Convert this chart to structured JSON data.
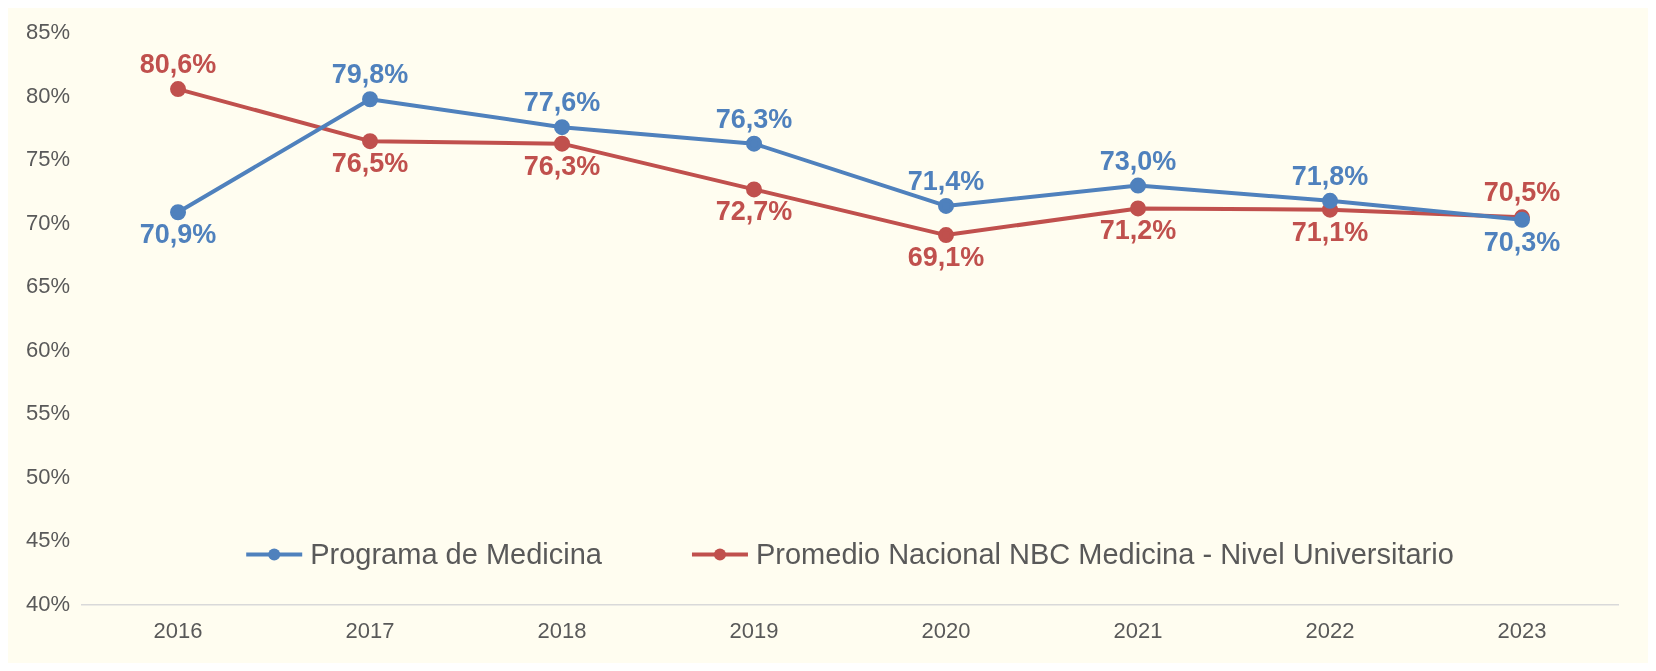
{
  "chart_data": {
    "type": "line",
    "categories": [
      "2016",
      "2017",
      "2018",
      "2019",
      "2020",
      "2021",
      "2022",
      "2023"
    ],
    "series": [
      {
        "name": "Programa de Medicina",
        "color": "#4f81bd",
        "values": [
          70.9,
          79.8,
          77.6,
          76.3,
          71.4,
          73.0,
          71.8,
          70.3
        ],
        "value_labels": [
          "70,9%",
          "79,8%",
          "77,6%",
          "76,3%",
          "71,4%",
          "73,0%",
          "71,8%",
          "70,3%"
        ]
      },
      {
        "name": "Promedio Nacional NBC Medicina - Nivel Universitario",
        "color": "#c0504d",
        "values": [
          80.6,
          76.5,
          76.3,
          72.7,
          69.1,
          71.2,
          71.1,
          70.5
        ],
        "value_labels": [
          "80,6%",
          "76,5%",
          "76,3%",
          "72,7%",
          "69,1%",
          "71,2%",
          "71,1%",
          "70,5%"
        ]
      }
    ],
    "ylim": [
      40,
      85
    ],
    "yticks": [
      {
        "value": 40,
        "label": "40%"
      },
      {
        "value": 45,
        "label": "45%"
      },
      {
        "value": 50,
        "label": "50%"
      },
      {
        "value": 55,
        "label": "55%"
      },
      {
        "value": 60,
        "label": "60%"
      },
      {
        "value": 65,
        "label": "65%"
      },
      {
        "value": 70,
        "label": "70%"
      },
      {
        "value": 75,
        "label": "75%"
      },
      {
        "value": 80,
        "label": "80%"
      },
      {
        "value": 85,
        "label": "85%"
      }
    ],
    "grid": false,
    "legend": "bottom",
    "marker": "circle",
    "line_style": "solid"
  }
}
